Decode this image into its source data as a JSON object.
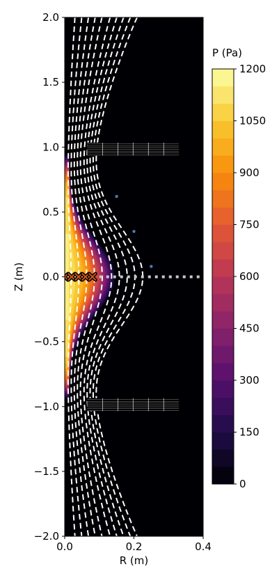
{
  "chart_data": {
    "type": "heatmap",
    "xlabel": "R (m)",
    "ylabel": "Z (m)",
    "xlim": [
      0.0,
      0.4
    ],
    "ylim": [
      -2.0,
      2.0
    ],
    "xticks": [
      0.0,
      0.2,
      0.4
    ],
    "xtick_labels": [
      "0.0",
      "0.2",
      "0.4"
    ],
    "yticks": [
      2.0,
      1.5,
      1.0,
      0.5,
      0.0,
      -0.5,
      -1.0,
      -1.5,
      -2.0
    ],
    "ytick_labels": [
      "2.0",
      "1.5",
      "1.0",
      "0.5",
      "0.0",
      "−0.5",
      "−1.0",
      "−1.5",
      "−2.0"
    ],
    "colorbar": {
      "label": "P (Pa)",
      "range": [
        0,
        1200
      ],
      "ticks": [
        0,
        150,
        300,
        450,
        600,
        750,
        900,
        1050,
        1200
      ],
      "tick_labels": [
        "0",
        "150",
        "300",
        "450",
        "600",
        "750",
        "900",
        "1050",
        "1200"
      ],
      "levels": 24,
      "colormap": "inferno"
    },
    "pressure_peak_pa": 1150,
    "plasma_boundary": {
      "r_max_midplane": 0.15,
      "z_half_height": 0.95
    },
    "flux_lines": {
      "style": "dashed",
      "color": "#ffffff",
      "r_midplane": [
        0.02,
        0.045,
        0.07,
        0.095,
        0.12,
        0.15,
        0.175,
        0.2,
        0.225,
        0.25
      ]
    },
    "coils": [
      {
        "name": "upper coil",
        "r_min": 0.065,
        "r_max": 0.33,
        "z_min": 0.935,
        "z_max": 1.035
      },
      {
        "name": "lower coil",
        "r_min": 0.065,
        "r_max": 0.33,
        "z_min": -1.035,
        "z_max": -0.935
      }
    ],
    "circle_markers": [
      {
        "r": 0.15,
        "z": 0.62
      },
      {
        "r": 0.2,
        "z": 0.35
      },
      {
        "r": 0.25,
        "z": 0.08
      }
    ],
    "x_markers": [
      {
        "r": 0.0,
        "z": 0.0
      },
      {
        "r": 0.02,
        "z": 0.0
      },
      {
        "r": 0.04,
        "z": 0.0
      },
      {
        "r": 0.06,
        "z": 0.0
      },
      {
        "r": 0.08,
        "z": 0.0
      }
    ],
    "midplane_line": {
      "z": 0.0,
      "r_start": 0.1,
      "r_end": 0.4,
      "color": "#c8c8c8",
      "style": "dotted"
    },
    "colors": {
      "background": "#000004",
      "inferno_stops": [
        "#000004",
        "#1f0c48",
        "#550f6d",
        "#88226a",
        "#ba3655",
        "#e35933",
        "#f98e09",
        "#f8c932",
        "#fcffa4"
      ]
    }
  }
}
